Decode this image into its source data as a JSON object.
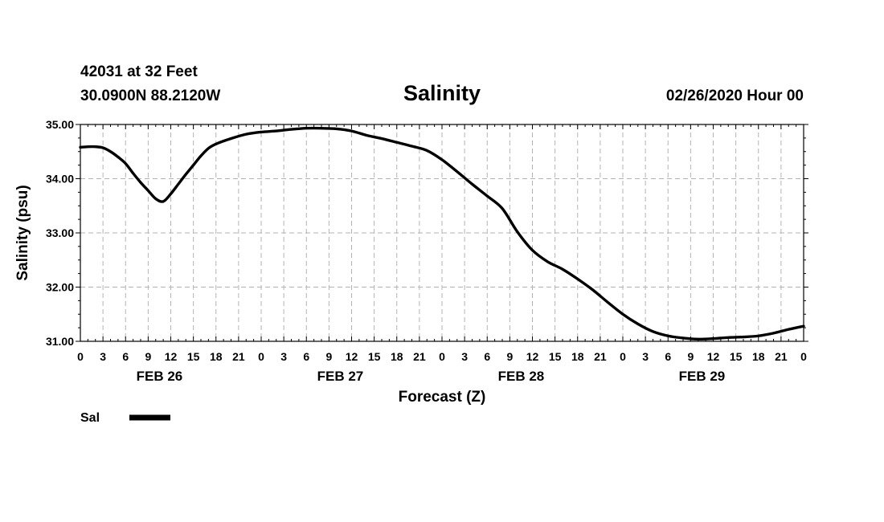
{
  "header": {
    "station": "42031 at 32 Feet",
    "coords": "30.0900N 88.2120W",
    "issued": "02/26/2020 Hour 00"
  },
  "legend": {
    "label": "Sal",
    "color": "#000000"
  },
  "chart_data": {
    "type": "line",
    "title": "Salinity",
    "xlabel": "Forecast (Z)",
    "ylabel": "Salinity (psu)",
    "ylim": [
      31.0,
      35.0
    ],
    "xlim": [
      0,
      96
    ],
    "yticks": [
      "31.00",
      "32.00",
      "33.00",
      "34.00",
      "35.00"
    ],
    "xtick_labels": [
      "0",
      "3",
      "6",
      "9",
      "12",
      "15",
      "18",
      "21",
      "0",
      "3",
      "6",
      "9",
      "12",
      "15",
      "18",
      "21",
      "0",
      "3",
      "6",
      "9",
      "12",
      "15",
      "18",
      "21",
      "0",
      "3",
      "6",
      "9",
      "12",
      "15",
      "18",
      "21",
      "0"
    ],
    "day_labels": [
      {
        "label": "FEB 26",
        "center_hour": 10.5
      },
      {
        "label": "FEB 27",
        "center_hour": 34.5
      },
      {
        "label": "FEB 28",
        "center_hour": 58.5
      },
      {
        "label": "FEB 29",
        "center_hour": 82.5
      }
    ],
    "grid": true,
    "series": [
      {
        "name": "Sal",
        "color": "#000000",
        "x": [
          0,
          1,
          2,
          3,
          4,
          5,
          6,
          7,
          8,
          9,
          10,
          11,
          12,
          13,
          14,
          15,
          16,
          17,
          18,
          20,
          22,
          24,
          26,
          28,
          30,
          32,
          34,
          36,
          38,
          40,
          42,
          44,
          46,
          48,
          50,
          52,
          54,
          56,
          58,
          60,
          62,
          64,
          66,
          68,
          70,
          72,
          74,
          76,
          78,
          80,
          82,
          84,
          86,
          88,
          90,
          92,
          94,
          96
        ],
        "y": [
          34.58,
          34.59,
          34.59,
          34.57,
          34.5,
          34.4,
          34.28,
          34.1,
          33.93,
          33.78,
          33.63,
          33.58,
          33.72,
          33.9,
          34.08,
          34.25,
          34.42,
          34.56,
          34.64,
          34.74,
          34.82,
          34.86,
          34.88,
          34.91,
          34.93,
          34.93,
          34.92,
          34.88,
          34.8,
          34.74,
          34.67,
          34.6,
          34.52,
          34.35,
          34.13,
          33.9,
          33.68,
          33.45,
          33.02,
          32.68,
          32.47,
          32.33,
          32.15,
          31.95,
          31.72,
          31.5,
          31.32,
          31.18,
          31.1,
          31.06,
          31.04,
          31.05,
          31.07,
          31.08,
          31.1,
          31.15,
          31.22,
          31.28
        ]
      }
    ]
  }
}
